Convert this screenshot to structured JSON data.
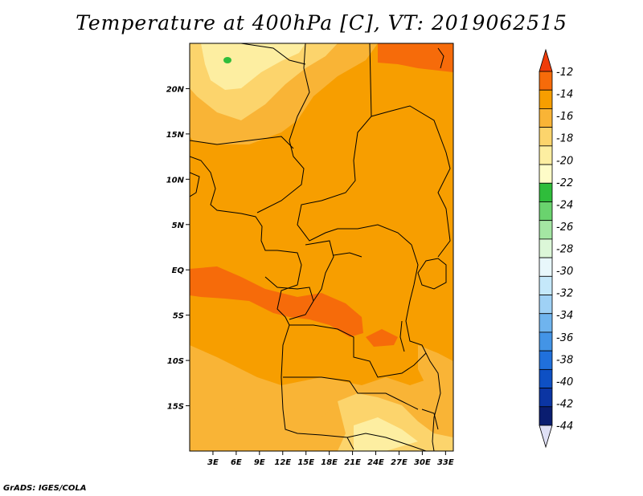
{
  "title": "Temperature at 400hPa [C], VT: 2019062515",
  "credit": "GrADS: IGES/COLA",
  "map": {
    "lon_range": [
      0,
      34
    ],
    "lat_range": [
      -20,
      25
    ],
    "lon_ticks": [
      "3E",
      "6E",
      "9E",
      "12E",
      "15E",
      "18E",
      "21E",
      "24E",
      "27E",
      "30E",
      "33E"
    ],
    "lat_ticks": [
      "20N",
      "15N",
      "10N",
      "5N",
      "EQ",
      "5S",
      "10S",
      "15S"
    ]
  },
  "colorbar": {
    "labels": [
      "-12",
      "-14",
      "-16",
      "-18",
      "-20",
      "-22",
      "-24",
      "-26",
      "-28",
      "-30",
      "-32",
      "-34",
      "-36",
      "-38",
      "-40",
      "-42",
      "-44"
    ],
    "colors": [
      "#f03c0a",
      "#f66b0a",
      "#f79e00",
      "#f9b436",
      "#fcd46c",
      "#fdeea1",
      "#fefcc8",
      "#2fbd3b",
      "#6ad36e",
      "#a4e6a3",
      "#dcf7d8",
      "#e8f7fb",
      "#c5e8fa",
      "#9fd1f5",
      "#6fb4ee",
      "#4394e6",
      "#2070dc",
      "#0e50c4",
      "#0b35a3",
      "#0a1d70",
      "#dfe0f5"
    ]
  }
}
